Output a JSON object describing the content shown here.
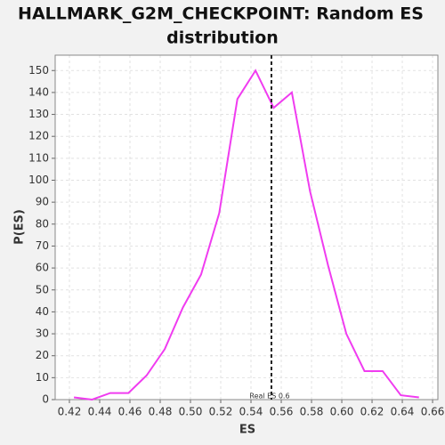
{
  "chart_data": {
    "type": "line",
    "title": [
      "HALLMARK_G2M_CHECKPOINT: Random ES",
      "distribution"
    ],
    "x_label": "ES",
    "y_label": "P(ES)",
    "x": [
      0.423,
      0.435,
      0.447,
      0.459,
      0.471,
      0.483,
      0.495,
      0.507,
      0.519,
      0.531,
      0.543,
      0.555,
      0.567,
      0.579,
      0.591,
      0.603,
      0.615,
      0.627,
      0.639,
      0.651
    ],
    "series": [
      {
        "name": "P(ES)",
        "color": "#f03cf0",
        "values": [
          1,
          0,
          3,
          3,
          11,
          23,
          42,
          57,
          85,
          137,
          150,
          133,
          140,
          95,
          61,
          30,
          13,
          13,
          2,
          1
        ]
      }
    ],
    "xlim": [
      0.4106,
      0.6635
    ],
    "ylim": [
      0,
      157
    ],
    "xticks": [
      0.42,
      0.44,
      0.46,
      0.48,
      {
        "value": 0.5,
        "label": "0.50"
      },
      0.52,
      0.54,
      0.56,
      0.58,
      {
        "value": 0.6,
        "label": "0.60"
      },
      0.62,
      0.64,
      0.66
    ],
    "yticks": [
      0,
      10,
      20,
      30,
      40,
      50,
      60,
      70,
      80,
      90,
      100,
      110,
      120,
      130,
      140,
      150
    ],
    "grid": true,
    "vline": {
      "x": 0.5535,
      "label": "Real ES 0.6",
      "color": "#222222"
    }
  }
}
